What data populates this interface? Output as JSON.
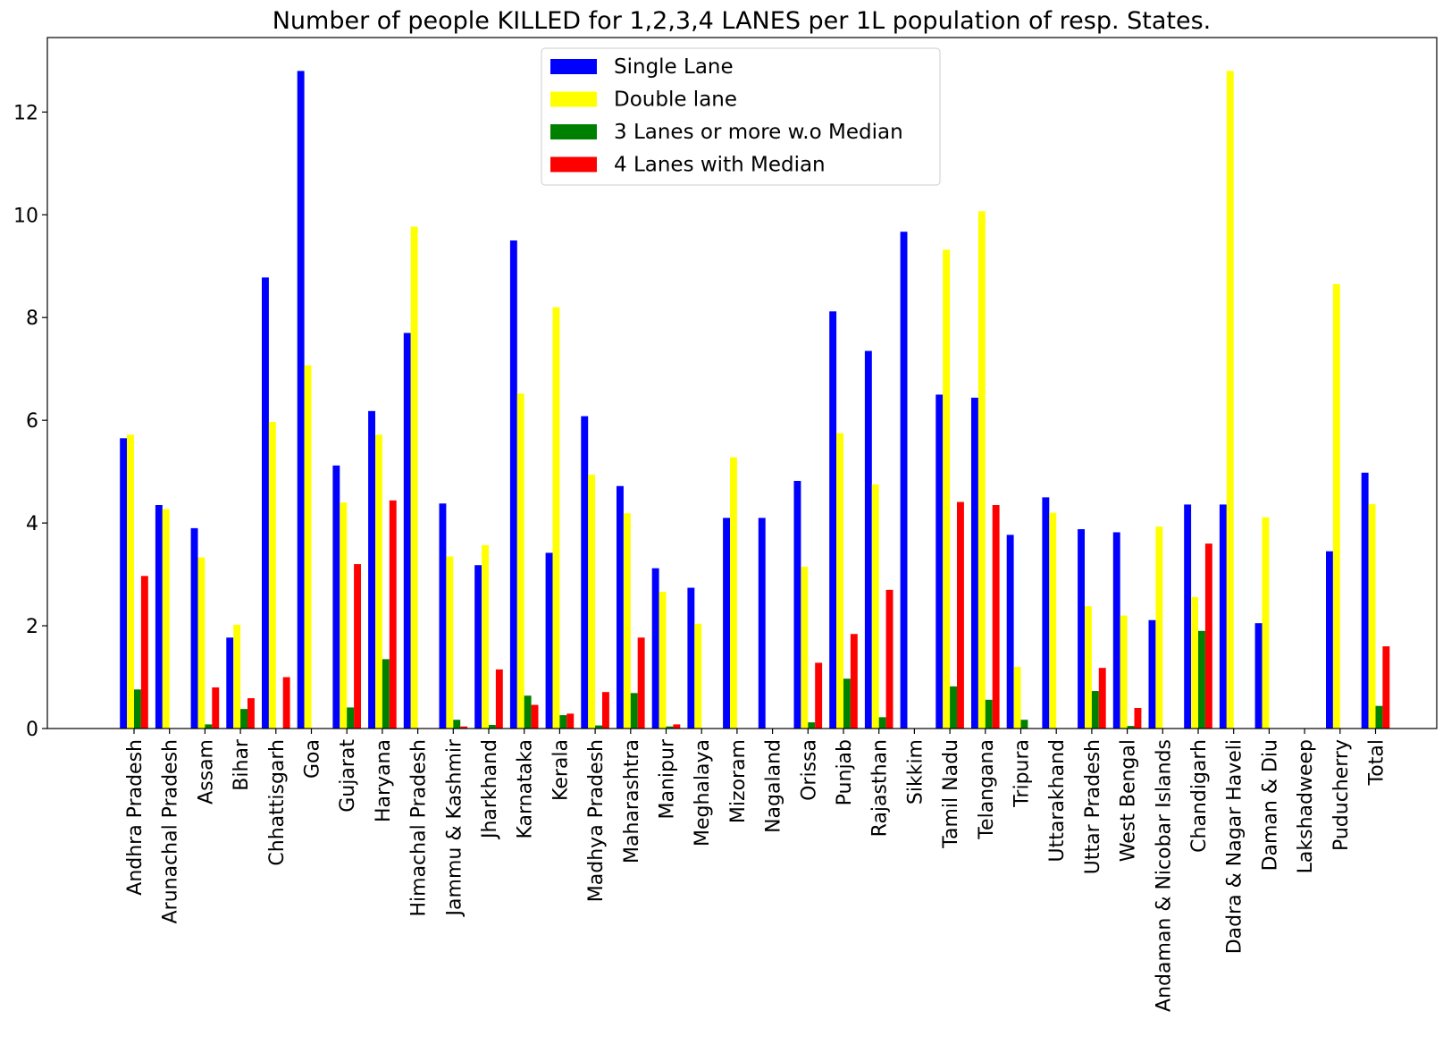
{
  "chart_data": {
    "type": "bar",
    "title": "Number of people KILLED for 1,2,3,4 LANES per 1L population of resp. States.",
    "xlabel": "",
    "ylabel": "",
    "ylim": [
      0,
      13.45
    ],
    "yticks": [
      0,
      2,
      4,
      6,
      8,
      10,
      12
    ],
    "grid": false,
    "legend_position": "top-center",
    "categories": [
      "Andhra Pradesh",
      "Arunachal Pradesh",
      "Assam",
      "Bihar",
      "Chhattisgarh",
      "Goa",
      "Gujarat",
      "Haryana",
      "Himachal Pradesh",
      "Jammu & Kashmir",
      "Jharkhand",
      "Karnataka",
      "Kerala",
      "Madhya Pradesh",
      "Maharashtra",
      "Manipur",
      "Meghalaya",
      "Mizoram",
      "Nagaland",
      "Orissa",
      "Punjab",
      "Rajasthan",
      "Sikkim",
      "Tamil Nadu",
      "Telangana",
      "Tripura",
      "Uttarakhand",
      "Uttar Pradesh",
      "West Bengal",
      "Andaman & Nicobar Islands",
      "Chandigarh",
      "Dadra & Nagar Haveli",
      "Daman & Diu",
      "Lakshadweep",
      "Puducherry",
      "Total"
    ],
    "series": [
      {
        "name": "Single Lane",
        "color": "#0000ff",
        "values": [
          5.65,
          4.35,
          3.9,
          1.77,
          8.78,
          12.8,
          5.12,
          6.18,
          7.7,
          4.38,
          3.18,
          9.5,
          3.42,
          6.08,
          4.72,
          3.12,
          2.74,
          4.1,
          4.1,
          4.82,
          8.12,
          7.35,
          9.67,
          6.5,
          6.44,
          3.77,
          4.5,
          3.88,
          3.82,
          2.11,
          4.36,
          4.36,
          2.05,
          0,
          3.45,
          4.98
        ]
      },
      {
        "name": "Double lane",
        "color": "#ffff00",
        "values": [
          5.72,
          4.27,
          3.33,
          2.02,
          5.97,
          7.07,
          4.4,
          5.72,
          9.77,
          3.35,
          3.57,
          6.52,
          8.2,
          4.94,
          4.19,
          2.66,
          2.04,
          5.28,
          0,
          3.15,
          5.75,
          4.75,
          0,
          9.32,
          10.07,
          1.2,
          4.2,
          2.38,
          2.2,
          3.93,
          2.56,
          12.8,
          4.11,
          0,
          8.65,
          4.37
        ]
      },
      {
        "name": "3 Lanes or more w.o Median",
        "color": "#008000",
        "values": [
          0.76,
          0,
          0.08,
          0.38,
          0,
          0,
          0.41,
          1.35,
          0,
          0.17,
          0.07,
          0.64,
          0.26,
          0.06,
          0.69,
          0.04,
          0,
          0,
          0,
          0.12,
          0.97,
          0.22,
          0,
          0.82,
          0.56,
          0.17,
          0,
          0.73,
          0.05,
          0,
          1.9,
          0,
          0,
          0,
          0,
          0.44
        ]
      },
      {
        "name": "4 Lanes with Median",
        "color": "#ff0000",
        "values": [
          2.97,
          0,
          0.8,
          0.59,
          1.0,
          0,
          3.2,
          4.44,
          0,
          0.04,
          1.15,
          0.46,
          0.29,
          0.71,
          1.77,
          0.08,
          0,
          0,
          0,
          1.28,
          1.84,
          2.7,
          0,
          4.41,
          4.35,
          0,
          0,
          1.18,
          0.4,
          0,
          3.6,
          0,
          0,
          0,
          0,
          1.6
        ]
      }
    ]
  }
}
